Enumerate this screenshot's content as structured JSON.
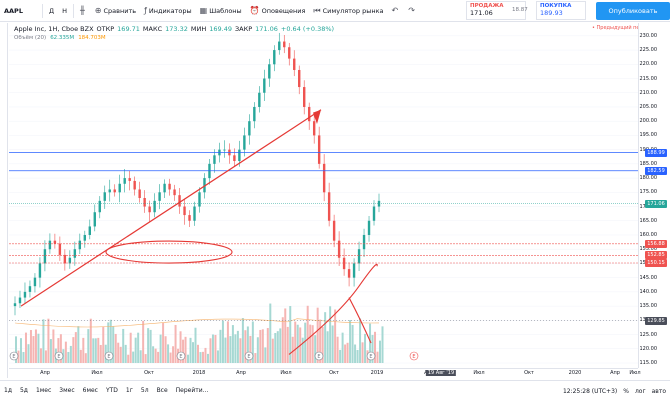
{
  "toolbar": {
    "symbol": "AAPL",
    "interval_d": "Д",
    "interval_h": "Н",
    "compare": "Сравнить",
    "indicators": "Индикаторы",
    "templates": "Шаблоны",
    "alerts": "Оповещения",
    "replay": "Симулятор рынка",
    "publish": "Опубликовать"
  },
  "quote": {
    "sell_label": "ПРОДАЖА",
    "sell_value": "171.06",
    "spread": "18.87",
    "buy_label": "ПОКУПКА",
    "buy_value": "189.93"
  },
  "legend": {
    "name": "Apple Inc, 1Н, Cboe BZX",
    "open_label": "ОТКР",
    "open": "169.71",
    "high_label": "МАКС",
    "high": "173.32",
    "low_label": "МИН",
    "low": "169.49",
    "close_label": "ЗАКР",
    "close": "171.06",
    "change": "+0.64 (+0.38%)"
  },
  "volume_legend": {
    "label": "Объём (20)",
    "v1": "62.335M",
    "v2": "184.703M"
  },
  "pre_period": "• Предыдущий период",
  "y_ticks": [
    "230.00",
    "225.00",
    "220.00",
    "215.00",
    "210.00",
    "205.00",
    "200.00",
    "195.00",
    "190.00",
    "185.00",
    "180.00",
    "175.00",
    "170.00",
    "165.00",
    "160.00",
    "155.00",
    "150.00",
    "145.00",
    "140.00",
    "135.00",
    "130.00",
    "125.00",
    "120.00",
    "115.00"
  ],
  "price_tags": [
    {
      "text": "188.99",
      "color": "#2962ff",
      "price": 188.99
    },
    {
      "text": "182.59",
      "color": "#2962ff",
      "price": 182.59
    },
    {
      "text": "171.06",
      "color": "#26a69a",
      "price": 171.06
    },
    {
      "text": "156.88",
      "color": "#ef5350",
      "price": 156.88
    },
    {
      "text": "152.85",
      "color": "#ef5350",
      "price": 152.85
    },
    {
      "text": "150.15",
      "color": "#ef5350",
      "price": 150.15
    },
    {
      "text": "129.85",
      "color": "#4a4e5a",
      "price": 129.85
    }
  ],
  "x_ticks": [
    "Апр",
    "Июл",
    "Окт",
    "2018",
    "Апр",
    "Июл",
    "Окт",
    "2019",
    "Апр",
    "Июл",
    "Окт",
    "2020",
    "Апр",
    "Июл"
  ],
  "x_date_tag": "19 Авг '19",
  "bottombar": {
    "ranges": [
      "1д",
      "5д",
      "1мес",
      "3мес",
      "6мес",
      "YTD",
      "1г",
      "5л",
      "Все"
    ],
    "goto": "Перейти...",
    "time": "12:25:28 (UTC+3)",
    "adj": "%",
    "log": "лог",
    "auto": "авто"
  },
  "chart_data": {
    "type": "candlestick",
    "price_range": [
      113,
      233
    ],
    "horizontal_lines": [
      188.99,
      182.59,
      156.88,
      152.85,
      150.15
    ],
    "last_price": 171.06,
    "series": [
      {
        "name": "price_path",
        "values": [
          136,
          138,
          140,
          142,
          145,
          150,
          155,
          158,
          157,
          153,
          150,
          152,
          155,
          158,
          160,
          163,
          168,
          172,
          175,
          176,
          175,
          178,
          180,
          179,
          176,
          173,
          170,
          168,
          172,
          175,
          178,
          176,
          174,
          170,
          167,
          165,
          170,
          175,
          180,
          185,
          188,
          190,
          190,
          188,
          186,
          190,
          195,
          200,
          205,
          210,
          215,
          220,
          225,
          228,
          226,
          222,
          218,
          212,
          205,
          200,
          195,
          185,
          175,
          165,
          158,
          152,
          148,
          145,
          150,
          155,
          160,
          165,
          170,
          172
        ]
      }
    ]
  }
}
